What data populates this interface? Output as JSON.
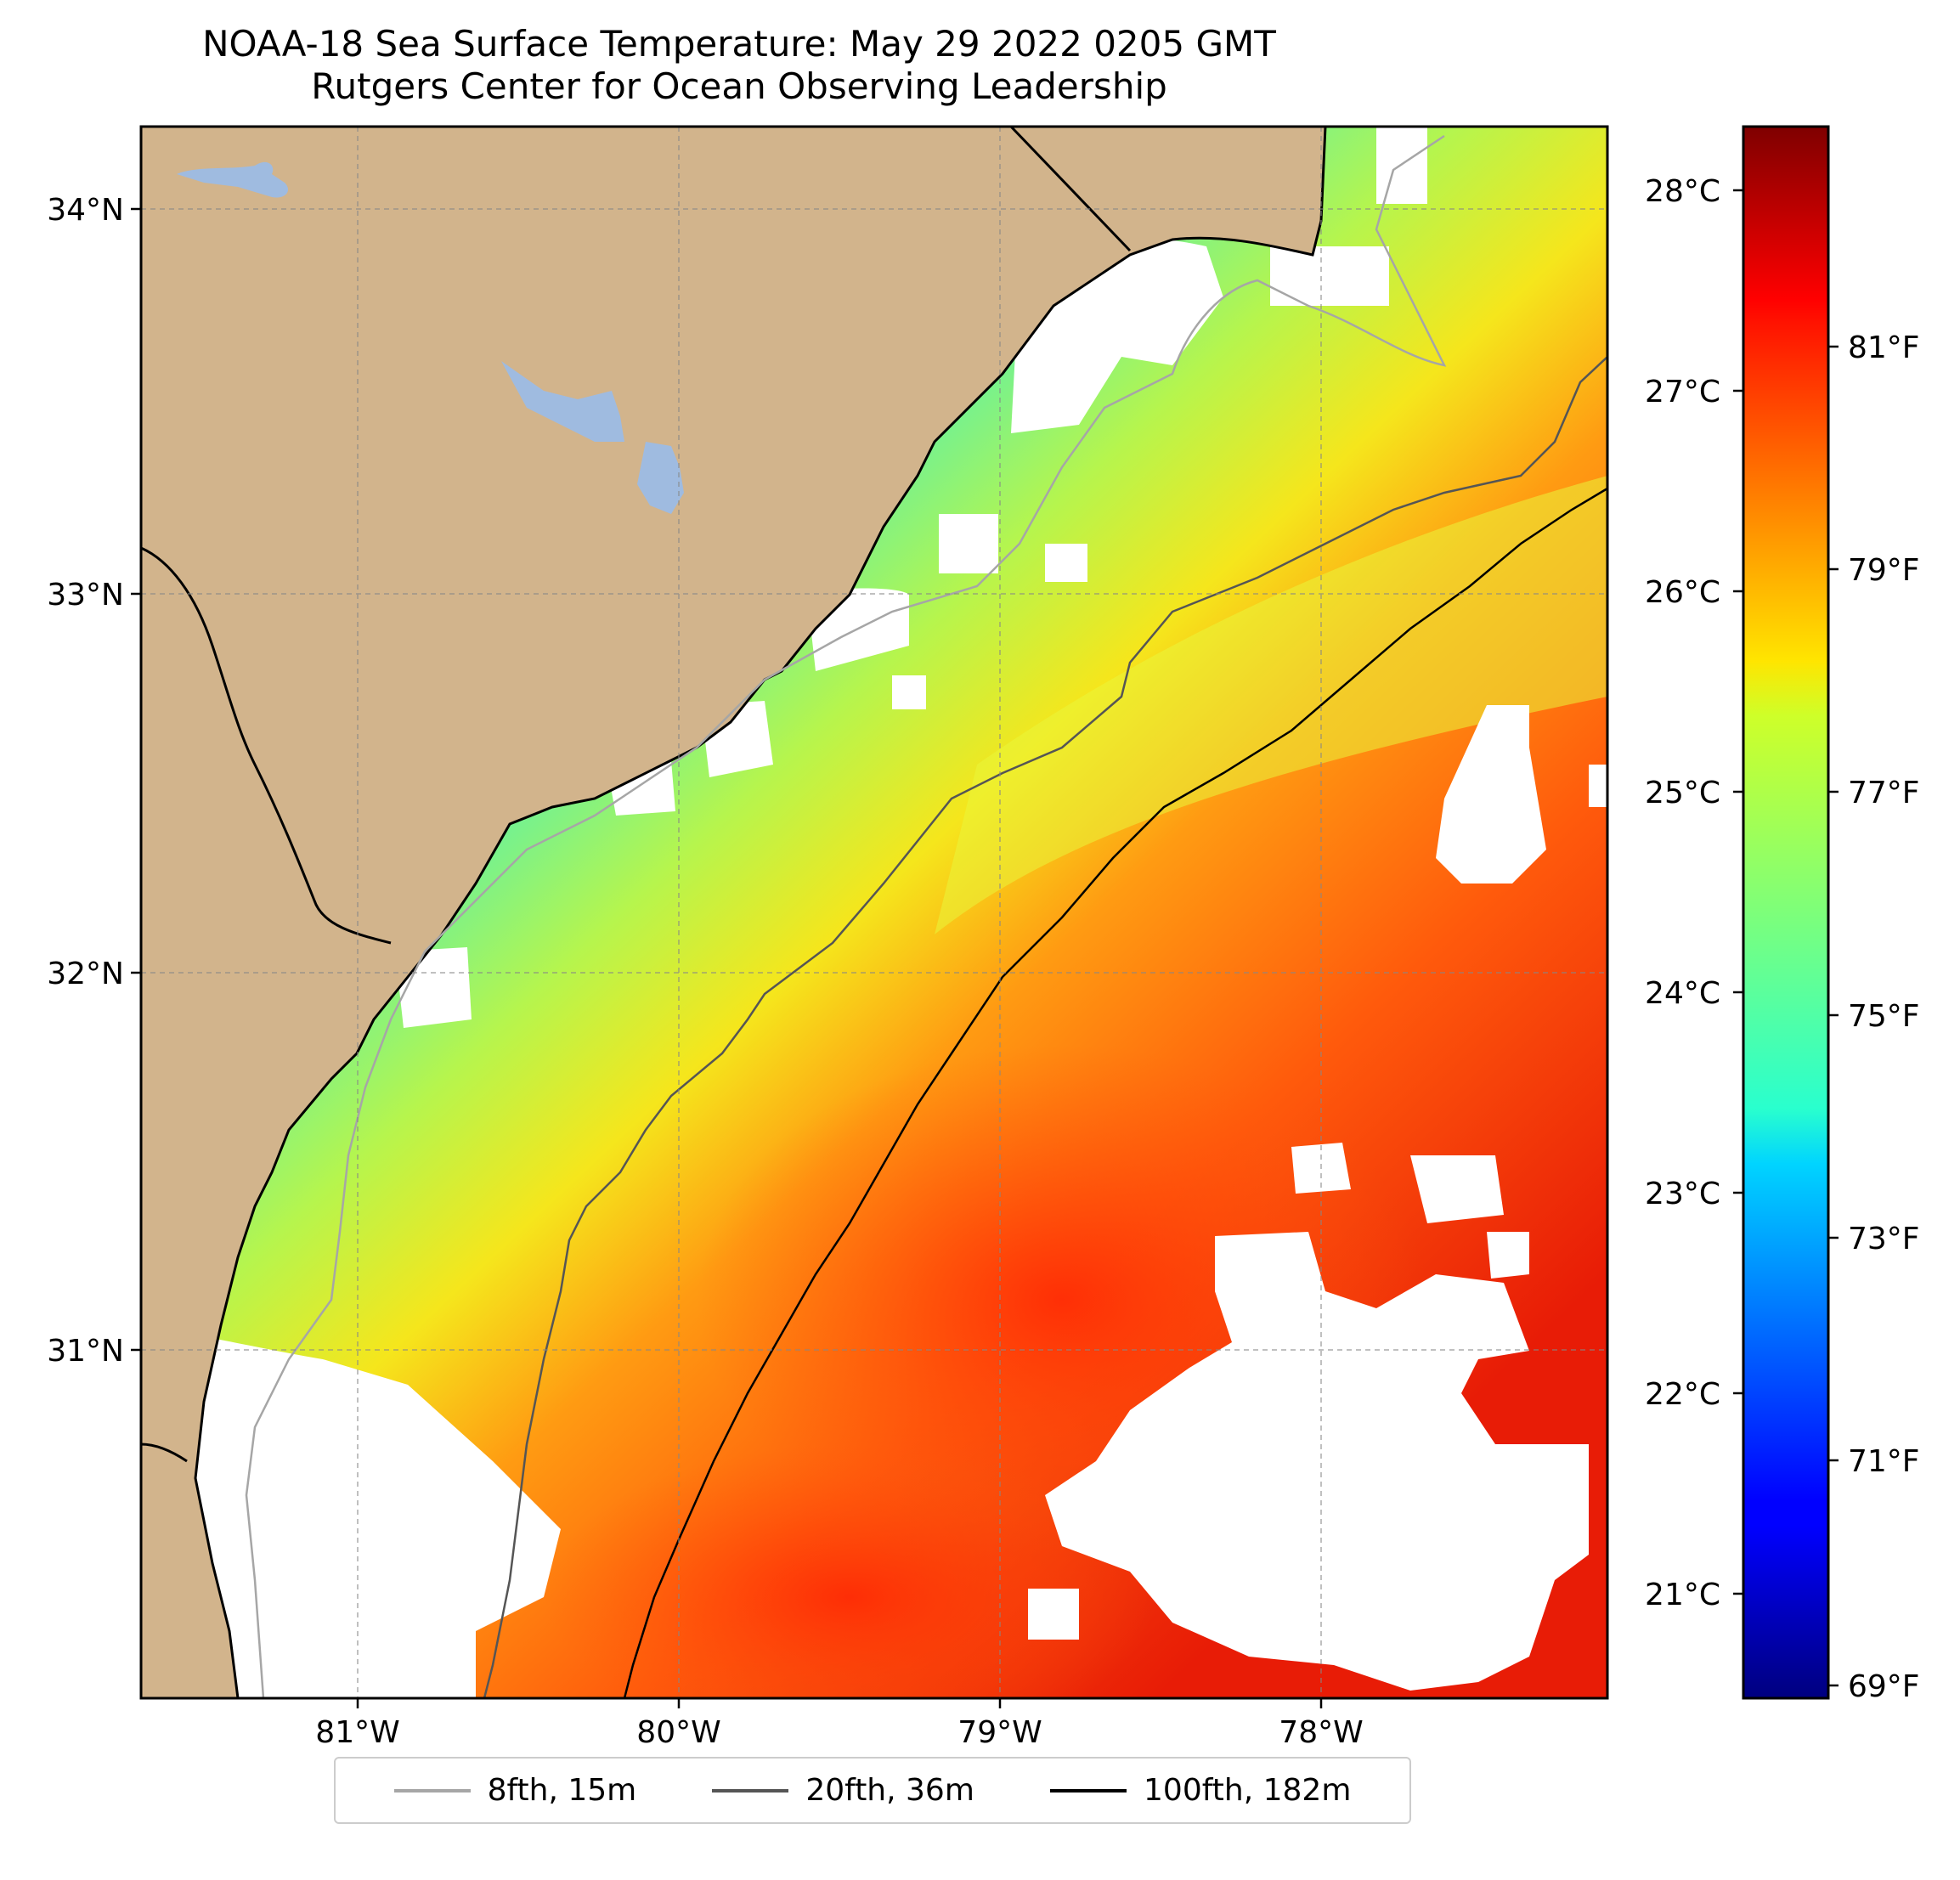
{
  "title": {
    "line1": "NOAA-18 Sea Surface Temperature: May 29 2022 0205 GMT",
    "line2": "Rutgers Center for Ocean Observing Leadership"
  },
  "map": {
    "lat_labels": [
      "34°N",
      "33°N",
      "32°N",
      "31°N"
    ],
    "lon_labels": [
      "81°W",
      "80°W",
      "79°W",
      "78°W"
    ],
    "land_color": "#d2b48c",
    "lake_color": "#9fbbe0",
    "no_data_color": "#ffffff"
  },
  "colorbar": {
    "celsius_labels": [
      "28°C",
      "27°C",
      "26°C",
      "25°C",
      "24°C",
      "23°C",
      "22°C",
      "21°C"
    ],
    "fahrenheit_labels": [
      "81°F",
      "79°F",
      "77°F",
      "75°F",
      "73°F",
      "71°F",
      "69°F"
    ],
    "colormap": "jet",
    "range_f": [
      68.9,
      83.2
    ]
  },
  "legend": {
    "items": [
      {
        "label": "8fth, 15m",
        "color": "#a6a6a6"
      },
      {
        "label": "20fth, 36m",
        "color": "#555555"
      },
      {
        "label": "100fth, 182m",
        "color": "#000000"
      }
    ]
  }
}
